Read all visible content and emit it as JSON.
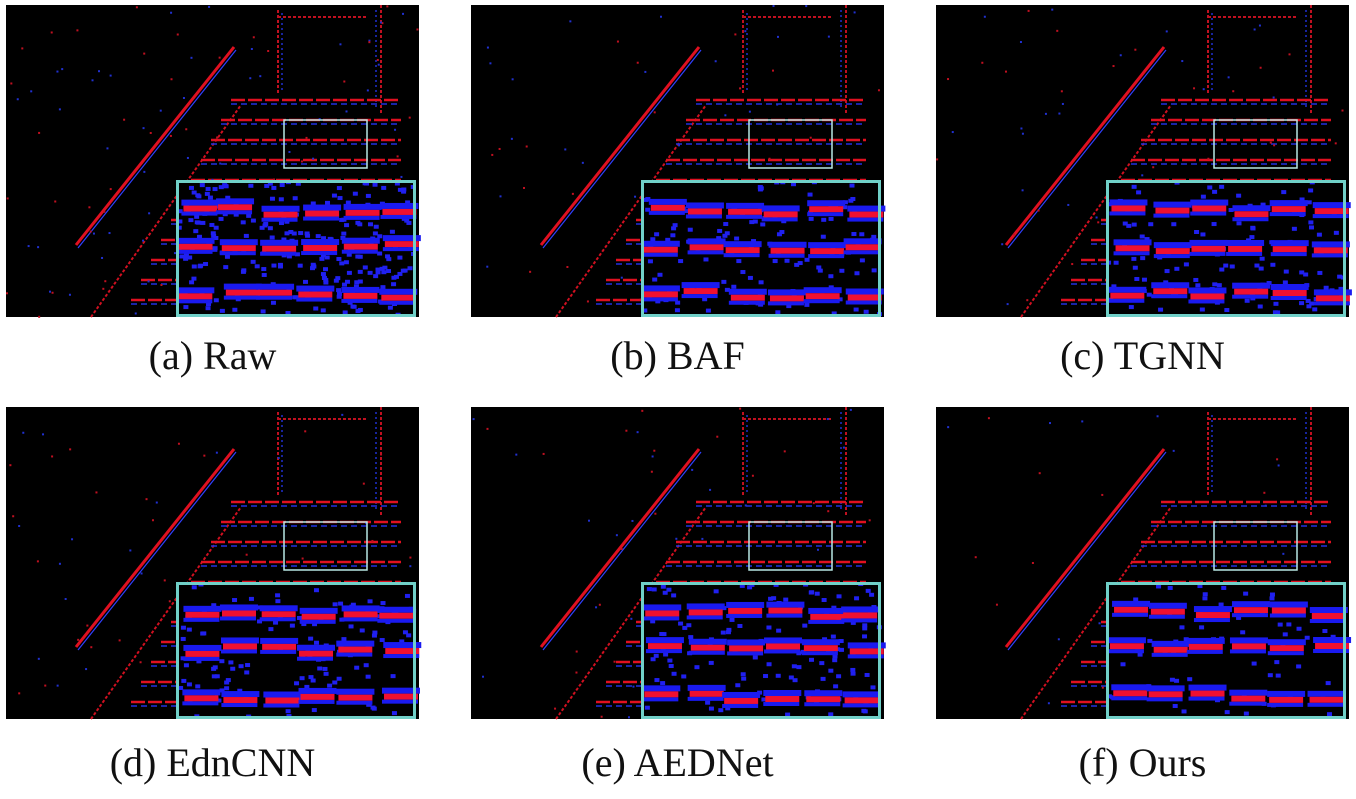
{
  "panels": [
    {
      "caption": "(a) Raw"
    },
    {
      "caption": "(b) BAF"
    },
    {
      "caption": "(c) TGNN"
    },
    {
      "caption": "(d) EdnCNN"
    },
    {
      "caption": "(e) AEDNet"
    },
    {
      "caption": "(f) Ours"
    }
  ]
}
